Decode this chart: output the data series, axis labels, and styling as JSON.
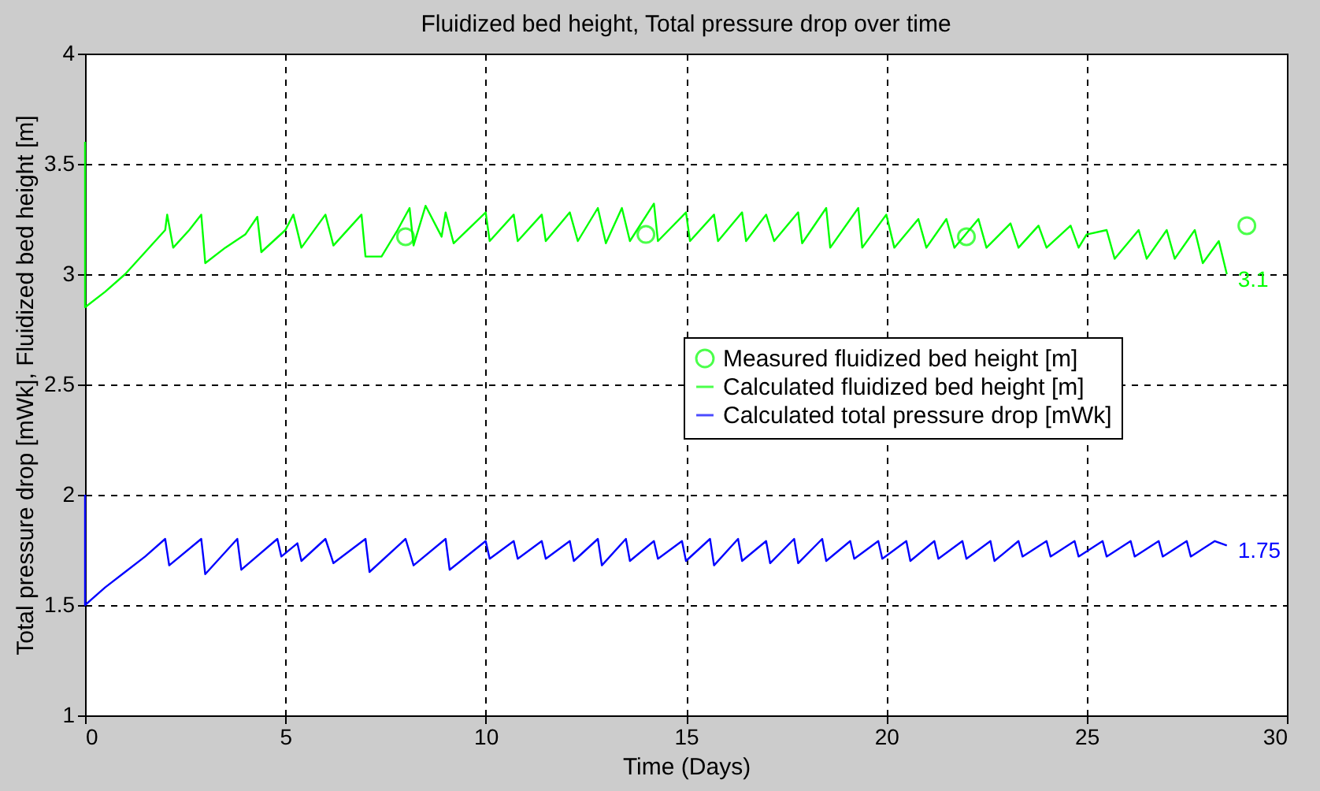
{
  "chart_data": {
    "type": "line",
    "title": "Fluidized bed height, Total pressure drop over time",
    "xlabel": "Time (Days)",
    "ylabel": "Total pressure drop [mWk], Fluidized bed height [m]",
    "xlim": [
      0,
      30
    ],
    "xticks": [
      0,
      5,
      10,
      15,
      20,
      25,
      30
    ],
    "ylim": [
      1,
      4
    ],
    "yticks": [
      1,
      1.5,
      2,
      2.5,
      3,
      3.5,
      4
    ],
    "grid": true,
    "legend": "right",
    "line_style": "solid",
    "series": [
      {
        "name": "Measured fluidized bed height [m]",
        "type": "scatter",
        "marker": "circle",
        "color": "#00ff00",
        "x": [
          8,
          14,
          22,
          29
        ],
        "values": [
          3.17,
          3.18,
          3.17,
          3.22
        ]
      },
      {
        "name": "Calculated fluidized bed height [m]",
        "marker": "none",
        "color": "#00ff00",
        "x": [
          0,
          0,
          0.5,
          1,
          1.5,
          2,
          2.05,
          2.2,
          2.6,
          2.9,
          3,
          3.5,
          4,
          4.3,
          4.4,
          5,
          5.2,
          5.4,
          6,
          6.2,
          6.9,
          7,
          7.4,
          7.8,
          8.1,
          8.2,
          8.5,
          8.9,
          9,
          9.2,
          10,
          10.1,
          10.7,
          10.8,
          11.4,
          11.5,
          12.1,
          12.3,
          12.8,
          13,
          13.4,
          13.6,
          14.2,
          14.3,
          15,
          15.1,
          15.7,
          15.8,
          16.4,
          16.5,
          17,
          17.2,
          17.8,
          17.9,
          18.5,
          18.6,
          19.3,
          19.4,
          20,
          20.2,
          20.8,
          21,
          21.5,
          21.7,
          22.3,
          22.5,
          23.1,
          23.3,
          23.8,
          24,
          24.6,
          24.8,
          25,
          25.5,
          25.7,
          26.3,
          26.5,
          27,
          27.2,
          27.7,
          27.9,
          28.3,
          28.5
        ],
        "values": [
          3.6,
          2.85,
          2.92,
          3.0,
          3.1,
          3.2,
          3.27,
          3.12,
          3.2,
          3.27,
          3.05,
          3.12,
          3.18,
          3.26,
          3.1,
          3.2,
          3.27,
          3.12,
          3.27,
          3.13,
          3.27,
          3.08,
          3.08,
          3.2,
          3.3,
          3.13,
          3.31,
          3.17,
          3.28,
          3.14,
          3.28,
          3.15,
          3.27,
          3.15,
          3.27,
          3.15,
          3.28,
          3.15,
          3.3,
          3.14,
          3.3,
          3.15,
          3.32,
          3.15,
          3.28,
          3.15,
          3.27,
          3.15,
          3.28,
          3.15,
          3.27,
          3.15,
          3.28,
          3.14,
          3.3,
          3.12,
          3.3,
          3.12,
          3.27,
          3.12,
          3.25,
          3.12,
          3.25,
          3.12,
          3.25,
          3.12,
          3.23,
          3.12,
          3.22,
          3.12,
          3.22,
          3.12,
          3.18,
          3.2,
          3.07,
          3.2,
          3.07,
          3.2,
          3.07,
          3.2,
          3.05,
          3.15,
          3.0
        ]
      },
      {
        "name": "Calculated total pressure drop [mWk]",
        "marker": "none",
        "color": "#0000ff",
        "x": [
          0,
          0,
          0.5,
          1,
          1.5,
          2,
          2.1,
          2.9,
          3,
          3.8,
          3.9,
          4.8,
          4.9,
          5.3,
          5.4,
          6,
          6.2,
          7,
          7.1,
          8,
          8.2,
          9,
          9.1,
          10,
          10.1,
          10.7,
          10.8,
          11.4,
          11.5,
          12.1,
          12.2,
          12.8,
          12.9,
          13.5,
          13.6,
          14.2,
          14.3,
          14.9,
          15,
          15.6,
          15.7,
          16.3,
          16.4,
          17,
          17.1,
          17.7,
          17.8,
          18.4,
          18.5,
          19.1,
          19.2,
          19.8,
          19.9,
          20.5,
          20.6,
          21.2,
          21.3,
          21.9,
          22,
          22.6,
          22.7,
          23.3,
          23.4,
          24,
          24.1,
          24.7,
          24.8,
          25.4,
          25.5,
          26.1,
          26.2,
          26.8,
          26.9,
          27.5,
          27.6,
          28.2,
          28.5
        ],
        "values": [
          2.0,
          1.5,
          1.58,
          1.65,
          1.72,
          1.8,
          1.68,
          1.8,
          1.64,
          1.8,
          1.66,
          1.8,
          1.72,
          1.78,
          1.7,
          1.8,
          1.69,
          1.8,
          1.65,
          1.8,
          1.68,
          1.8,
          1.66,
          1.79,
          1.71,
          1.79,
          1.71,
          1.79,
          1.71,
          1.79,
          1.7,
          1.8,
          1.68,
          1.8,
          1.7,
          1.79,
          1.71,
          1.79,
          1.7,
          1.8,
          1.68,
          1.8,
          1.7,
          1.79,
          1.69,
          1.8,
          1.69,
          1.8,
          1.7,
          1.79,
          1.71,
          1.79,
          1.71,
          1.79,
          1.7,
          1.79,
          1.71,
          1.79,
          1.71,
          1.79,
          1.7,
          1.79,
          1.72,
          1.79,
          1.72,
          1.79,
          1.72,
          1.79,
          1.72,
          1.79,
          1.72,
          1.79,
          1.72,
          1.79,
          1.72,
          1.79,
          1.77
        ]
      }
    ],
    "annotations": [
      "3.1",
      "1.75"
    ]
  }
}
